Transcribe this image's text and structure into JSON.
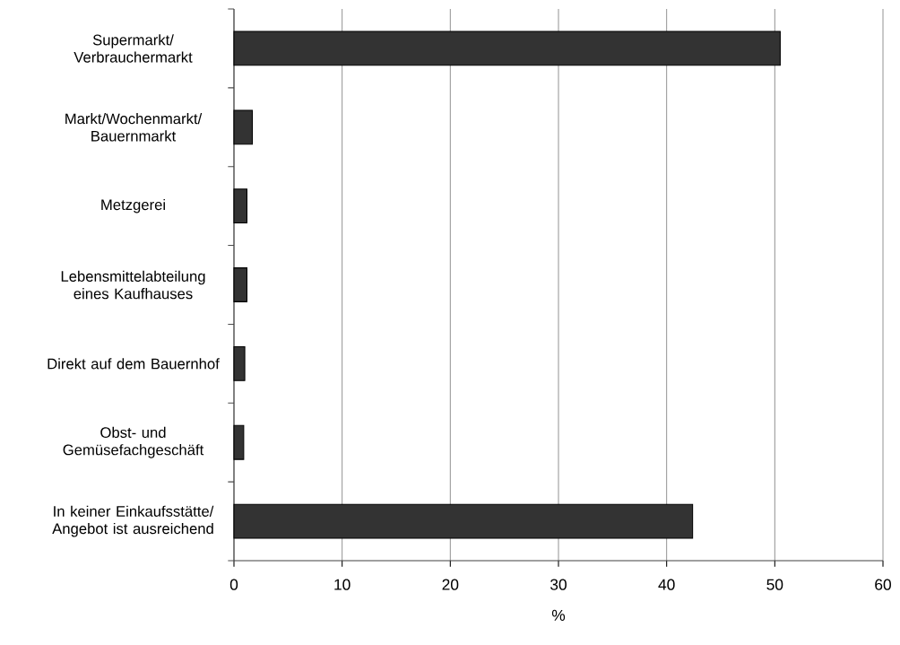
{
  "chart_data": {
    "type": "bar",
    "orientation": "horizontal",
    "xlabel": "%",
    "categories": [
      "Supermarkt/ Verbrauchermarkt",
      "Markt/Wochenmarkt/ Bauernmarkt",
      "Metzgerei",
      "Lebensmittelabteilung eines Kaufhauses",
      "Direkt auf dem Bauernhof",
      "Obst- und Gemüsefachgeschäft",
      "In keiner Einkaufsstätte/ Angebot ist ausreichend"
    ],
    "values": [
      50.5,
      1.7,
      1.2,
      1.2,
      1.0,
      0.9,
      42.4
    ],
    "color": "#333333",
    "xlim": [
      0,
      60
    ],
    "xticks": [
      0,
      10,
      20,
      30,
      40,
      50,
      60
    ],
    "grid": "x"
  }
}
